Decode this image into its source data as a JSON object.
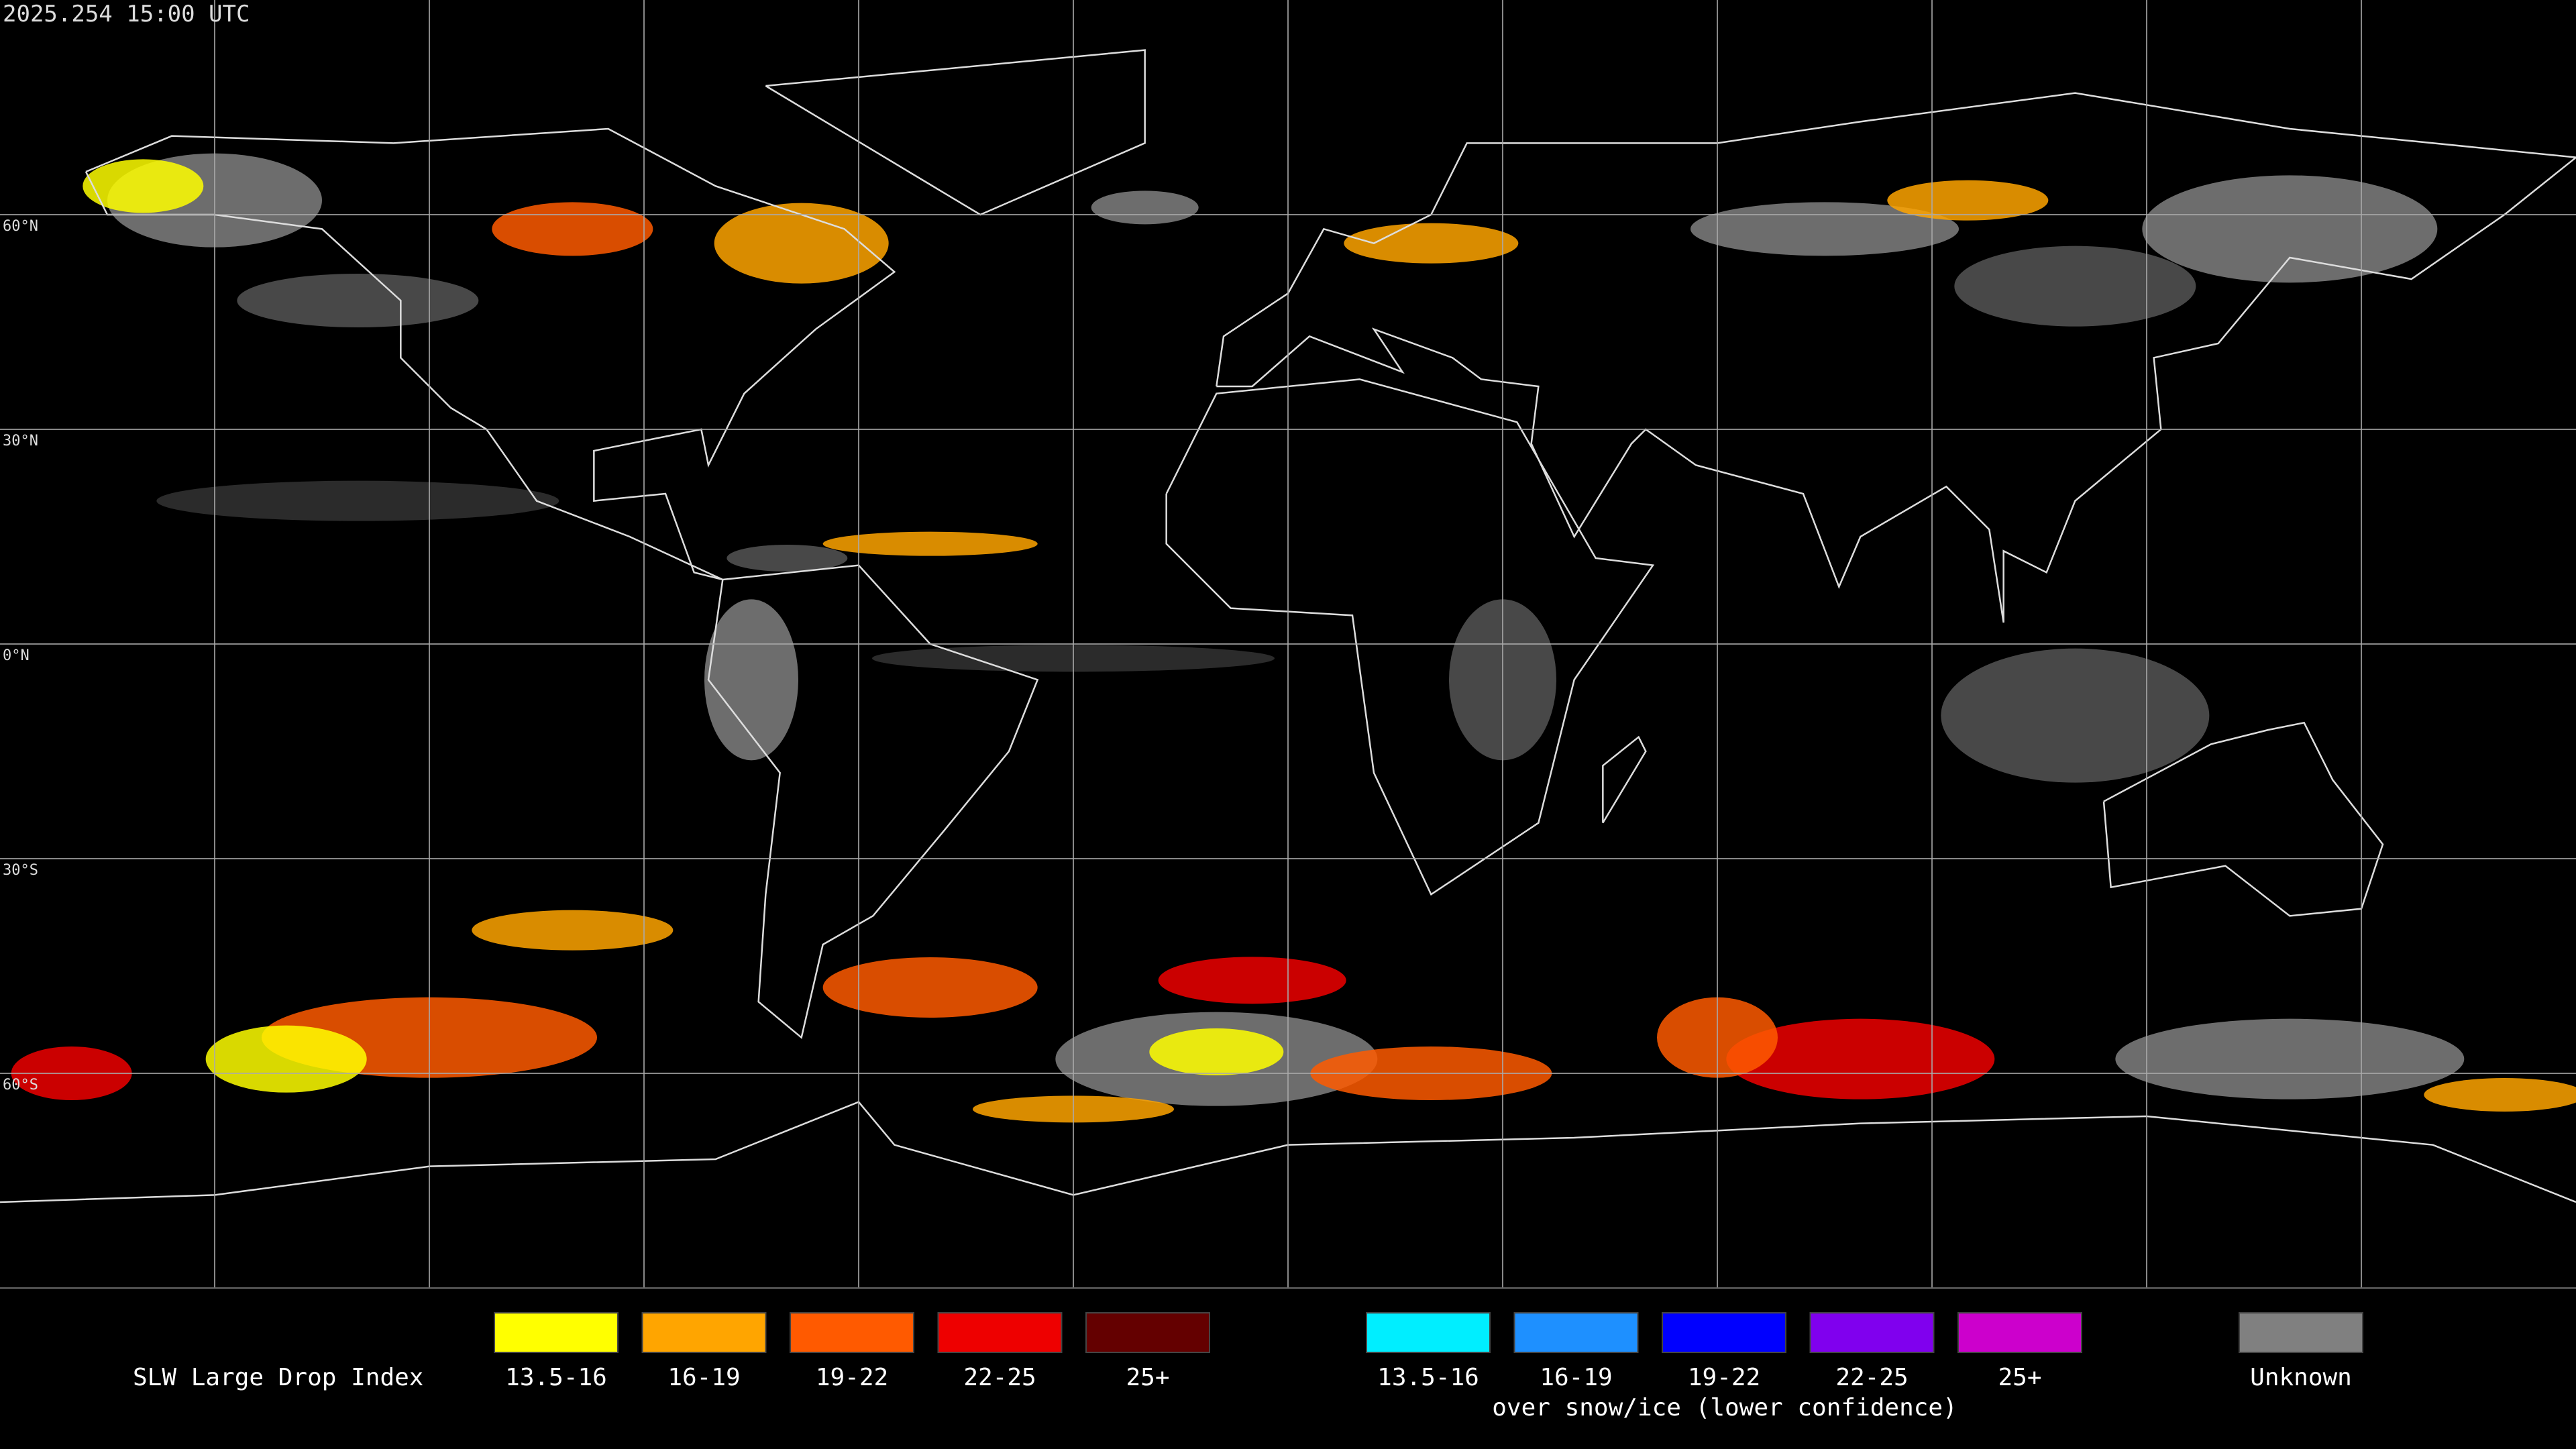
{
  "timestamp": "2025.254 15:00 UTC",
  "grid_labels": [
    "60°N",
    "30°N",
    "0°N",
    "30°S",
    "60°S"
  ],
  "legend": {
    "title": "SLW Large Drop Index",
    "items": [
      {
        "label": "13.5-16",
        "color": "#ffff00"
      },
      {
        "label": "16-19",
        "color": "#ffa500"
      },
      {
        "label": "19-22",
        "color": "#ff5a00"
      },
      {
        "label": "22-25",
        "color": "#ee0000"
      },
      {
        "label": "25+",
        "color": "#640000"
      }
    ],
    "snow_items": [
      {
        "label": "13.5-16",
        "color": "#00eeff"
      },
      {
        "label": "16-19",
        "color": "#1e90ff"
      },
      {
        "label": "19-22",
        "color": "#0000ff"
      },
      {
        "label": "22-25",
        "color": "#8000ee"
      },
      {
        "label": "25+",
        "color": "#cc00cc"
      }
    ],
    "snow_note": "over snow/ice (lower confidence)",
    "unknown": {
      "label": "Unknown",
      "color": "#808080"
    }
  }
}
